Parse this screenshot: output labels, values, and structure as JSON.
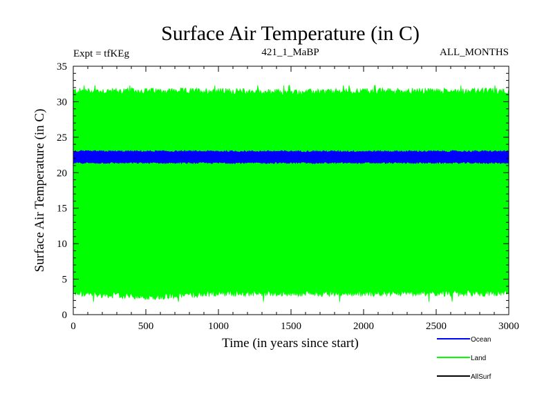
{
  "chart_data": {
    "type": "line",
    "title": "Surface Air Temperature (in C)",
    "subtitle_left": "Expt = tfKEg",
    "subtitle_center": "421_1_MaBP",
    "subtitle_right": "ALL_MONTHS",
    "xlabel": "Time (in years since start)",
    "ylabel": "Surface Air Temperature (in C)",
    "xlim": [
      0,
      3000
    ],
    "ylim": [
      0,
      35
    ],
    "x_ticks": [
      0,
      500,
      1000,
      1500,
      2000,
      2500,
      3000
    ],
    "y_ticks": [
      0,
      5,
      10,
      15,
      20,
      25,
      30,
      35
    ],
    "grid": false,
    "legend_position": "bottom-right",
    "series": [
      {
        "name": "Land",
        "color": "#00ff00",
        "style": "dense seasonal oscillation",
        "band_min": [
          3.0,
          2.5,
          3.0,
          3.0,
          3.0,
          3.0,
          3.0
        ],
        "band_max": [
          31.5,
          31.5,
          31.5,
          31.3,
          31.5,
          31.5,
          31.5
        ],
        "extreme_min": 1.8,
        "extreme_max": 32.3
      },
      {
        "name": "Ocean",
        "color": "#0000ff",
        "style": "dense seasonal oscillation",
        "band_min": [
          21.4,
          21.4,
          21.4,
          21.4,
          21.4,
          21.4,
          21.4
        ],
        "band_max": [
          23.0,
          23.0,
          23.0,
          23.0,
          23.0,
          23.0,
          23.0
        ]
      },
      {
        "name": "AllSurf",
        "color": "#000000",
        "style": "not visible (hidden behind other series)"
      }
    ],
    "legend": [
      {
        "label": "Ocean",
        "color": "#0000ff"
      },
      {
        "label": "Land",
        "color": "#00ff00"
      },
      {
        "label": "AllSurf",
        "color": "#000000"
      }
    ]
  }
}
